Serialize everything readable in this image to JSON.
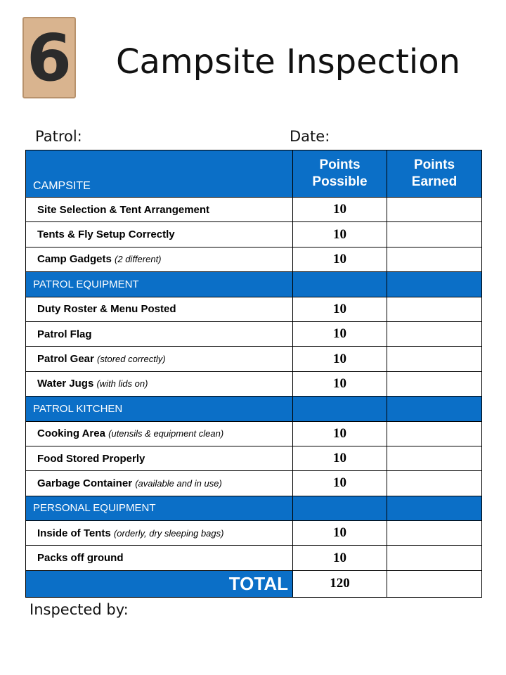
{
  "badge": "6",
  "header": {
    "title": "Campsite Inspection",
    "patrol": "Patrol:",
    "date": "Date:"
  },
  "table": {
    "columns": [
      "Points Possible",
      "Points Earned"
    ],
    "sections": [
      {
        "title": "CAMPSITE",
        "items": [
          {
            "label": "Site Selection & Tent Arrangement",
            "points": 10
          },
          {
            "label": "Tents & Fly Setup Correctly",
            "points": 10
          },
          {
            "label": "Camp Gadgets",
            "note": "(2 different)",
            "points": 10
          }
        ]
      },
      {
        "title": "PATROL EQUIPMENT",
        "items": [
          {
            "label": "Duty Roster & Menu Posted",
            "points": 10
          },
          {
            "label": "Patrol Flag",
            "points": 10
          },
          {
            "label": "Patrol Gear",
            "note": "(stored correctly)",
            "points": 10
          },
          {
            "label": "Water Jugs",
            "note": "(with lids on)",
            "points": 10
          }
        ]
      },
      {
        "title": "PATROL KITCHEN",
        "items": [
          {
            "label": "Cooking Area",
            "note": "(utensils & equipment clean)",
            "points": 10
          },
          {
            "label": "Food Stored Properly",
            "points": 10
          },
          {
            "label": "Garbage Container",
            "note": "(available and in use)",
            "points": 10
          }
        ]
      },
      {
        "title": "PERSONAL EQUIPMENT",
        "items": [
          {
            "label": "Inside of Tents",
            "note": "(orderly, dry sleeping bags)",
            "points": 10
          },
          {
            "label": "Packs off ground",
            "points": 10
          }
        ]
      }
    ],
    "total": {
      "label": "TOTAL",
      "points": 120
    }
  },
  "footer": {
    "inspected": "Inspected by:"
  }
}
